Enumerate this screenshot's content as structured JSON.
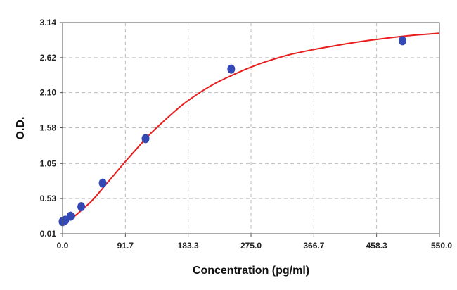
{
  "chart_data": {
    "type": "scatter",
    "title": "",
    "xlabel": "Concentration (pg/ml)",
    "ylabel": "O.D.",
    "xlim": [
      0,
      550
    ],
    "ylim": [
      0.01,
      3.14
    ],
    "x_ticks": [
      "0.0",
      "91.7",
      "183.3",
      "275.0",
      "366.7",
      "458.3",
      "550.0"
    ],
    "x_tick_values": [
      0,
      91.7,
      183.3,
      275.0,
      366.7,
      458.3,
      550.0
    ],
    "y_ticks": [
      "0.01",
      "0.53",
      "1.05",
      "1.58",
      "2.10",
      "2.62",
      "3.14"
    ],
    "y_tick_values": [
      0.01,
      0.53,
      1.05,
      1.58,
      2.1,
      2.62,
      3.14
    ],
    "grid": true,
    "series": [
      {
        "type": "scatter",
        "color": "#3347b5",
        "points": [
          {
            "x": 0,
            "y": 0.19
          },
          {
            "x": 3.9,
            "y": 0.21
          },
          {
            "x": 11.7,
            "y": 0.27
          },
          {
            "x": 27.3,
            "y": 0.41
          },
          {
            "x": 58.6,
            "y": 0.76
          },
          {
            "x": 121.1,
            "y": 1.42
          },
          {
            "x": 246.1,
            "y": 2.45
          },
          {
            "x": 496.1,
            "y": 2.87
          }
        ]
      },
      {
        "type": "line",
        "color": "#e81d1d",
        "points": [
          {
            "x": 0,
            "y": 0.16
          },
          {
            "x": 10,
            "y": 0.22
          },
          {
            "x": 20,
            "y": 0.29
          },
          {
            "x": 30,
            "y": 0.38
          },
          {
            "x": 40,
            "y": 0.47
          },
          {
            "x": 50,
            "y": 0.58
          },
          {
            "x": 60,
            "y": 0.7
          },
          {
            "x": 75,
            "y": 0.88
          },
          {
            "x": 91.7,
            "y": 1.08
          },
          {
            "x": 110,
            "y": 1.29
          },
          {
            "x": 130,
            "y": 1.51
          },
          {
            "x": 150,
            "y": 1.7
          },
          {
            "x": 175,
            "y": 1.92
          },
          {
            "x": 200,
            "y": 2.1
          },
          {
            "x": 225,
            "y": 2.25
          },
          {
            "x": 250,
            "y": 2.37
          },
          {
            "x": 275,
            "y": 2.48
          },
          {
            "x": 300,
            "y": 2.57
          },
          {
            "x": 330,
            "y": 2.66
          },
          {
            "x": 366.7,
            "y": 2.74
          },
          {
            "x": 400,
            "y": 2.8
          },
          {
            "x": 430,
            "y": 2.85
          },
          {
            "x": 458.3,
            "y": 2.89
          },
          {
            "x": 500,
            "y": 2.94
          },
          {
            "x": 550,
            "y": 2.98
          }
        ]
      }
    ]
  }
}
